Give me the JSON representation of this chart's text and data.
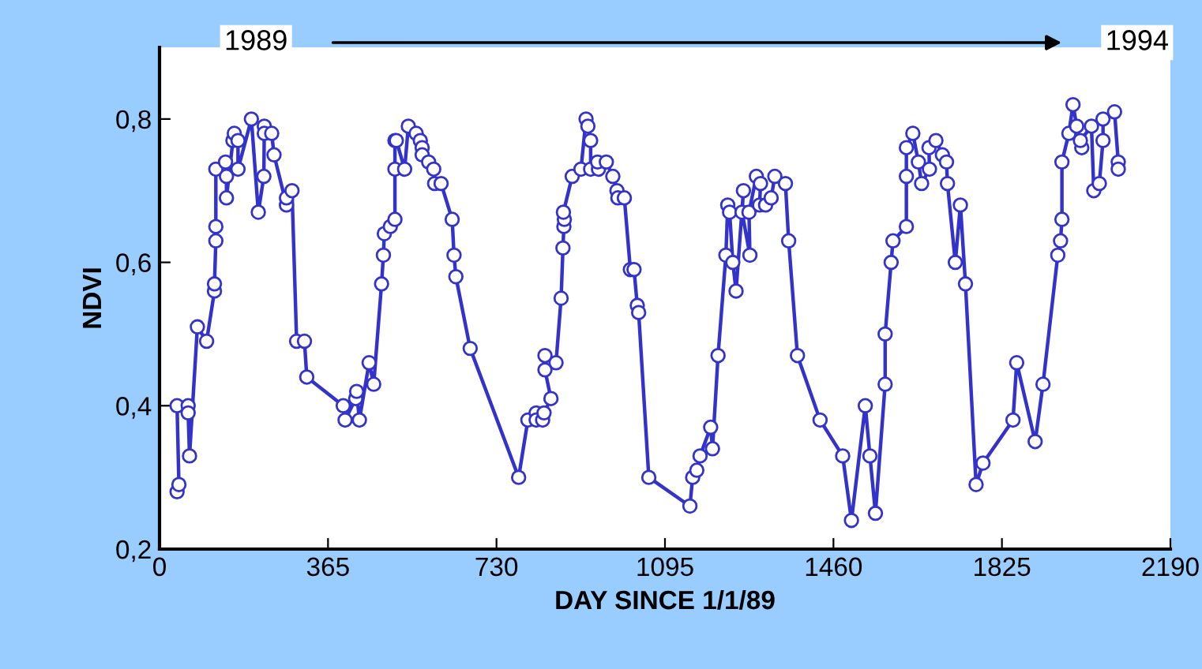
{
  "chart_data": {
    "type": "line",
    "xlabel": "DAY SINCE 1/1/89",
    "ylabel": "NDVI",
    "annotations": [
      "1989",
      "1994"
    ],
    "x": [
      38,
      42,
      38,
      62,
      62,
      65,
      82,
      102,
      119,
      119,
      122,
      122,
      122,
      143,
      145,
      145,
      159,
      162,
      170,
      170,
      199,
      214,
      226,
      227,
      227,
      243,
      248,
      275,
      275,
      287,
      297,
      314,
      319,
      398,
      402,
      425,
      427,
      433,
      454,
      464,
      481,
      485,
      487,
      500,
      510,
      510,
      510,
      513,
      531,
      539,
      556,
      565,
      569,
      569,
      583,
      594,
      596,
      610,
      634,
      638,
      642,
      673,
      778,
      798,
      816,
      816,
      830,
      833,
      848,
      835,
      835,
      859,
      870,
      874,
      876,
      877,
      875,
      894,
      913,
      924,
      928,
      934,
      934,
      951,
      949,
      968,
      982,
      991,
      993,
      1007,
      1020,
      1028,
      1035,
      1038,
      1060,
      1149,
      1155,
      1164,
      1171,
      1194,
      1198,
      1210,
      1227,
      1231,
      1235,
      1242,
      1249,
      1265,
      1262,
      1279,
      1277,
      1293,
      1302,
      1300,
      1313,
      1325,
      1333,
      1356,
      1363,
      1382,
      1431,
      1480,
      1499,
      1529,
      1539,
      1551,
      1572,
      1572,
      1585,
      1589,
      1618,
      1618,
      1618,
      1632,
      1644,
      1651,
      1668,
      1667,
      1682,
      1696,
      1705,
      1707,
      1724,
      1735,
      1746,
      1769,
      1784,
      1849,
      1857,
      1897,
      1914,
      1946,
      1952,
      1955,
      1955,
      1970,
      1979,
      1987,
      1998,
      1995,
      2019,
      2024,
      2036,
      2044,
      2044,
      2069,
      2077,
      2077
    ],
    "series": [
      {
        "color": "#3333cc",
        "values": [
          0.28,
          0.29,
          0.4,
          0.4,
          0.39,
          0.33,
          0.51,
          0.49,
          0.56,
          0.57,
          0.63,
          0.65,
          0.73,
          0.74,
          0.72,
          0.69,
          0.77,
          0.78,
          0.77,
          0.73,
          0.8,
          0.67,
          0.72,
          0.79,
          0.78,
          0.78,
          0.75,
          0.68,
          0.69,
          0.7,
          0.49,
          0.49,
          0.44,
          0.4,
          0.38,
          0.41,
          0.42,
          0.38,
          0.46,
          0.43,
          0.57,
          0.61,
          0.64,
          0.65,
          0.66,
          0.73,
          0.77,
          0.77,
          0.73,
          0.79,
          0.78,
          0.77,
          0.76,
          0.75,
          0.74,
          0.73,
          0.71,
          0.71,
          0.66,
          0.61,
          0.58,
          0.48,
          0.3,
          0.38,
          0.39,
          0.38,
          0.38,
          0.39,
          0.41,
          0.45,
          0.47,
          0.46,
          0.55,
          0.62,
          0.65,
          0.66,
          0.67,
          0.72,
          0.73,
          0.8,
          0.79,
          0.77,
          0.73,
          0.73,
          0.74,
          0.74,
          0.72,
          0.7,
          0.69,
          0.69,
          0.59,
          0.59,
          0.54,
          0.53,
          0.3,
          0.26,
          0.3,
          0.31,
          0.33,
          0.37,
          0.34,
          0.47,
          0.61,
          0.68,
          0.67,
          0.6,
          0.56,
          0.7,
          0.67,
          0.61,
          0.67,
          0.72,
          0.71,
          0.68,
          0.68,
          0.69,
          0.72,
          0.71,
          0.63,
          0.47,
          0.38,
          0.33,
          0.24,
          0.4,
          0.33,
          0.25,
          0.43,
          0.5,
          0.6,
          0.63,
          0.65,
          0.72,
          0.76,
          0.78,
          0.74,
          0.71,
          0.73,
          0.76,
          0.77,
          0.75,
          0.74,
          0.71,
          0.6,
          0.68,
          0.57,
          0.29,
          0.32,
          0.38,
          0.46,
          0.35,
          0.43,
          0.61,
          0.63,
          0.66,
          0.74,
          0.78,
          0.82,
          0.79,
          0.76,
          0.77,
          0.79,
          0.7,
          0.71,
          0.77,
          0.8,
          0.81,
          0.74,
          0.73
        ]
      }
    ],
    "xlim": [
      0,
      2190
    ],
    "xticks": [
      0,
      365,
      730,
      1095,
      1460,
      1825,
      2190
    ],
    "ylim": [
      0.2,
      0.9
    ],
    "yticks": [
      {
        "value": 0.2,
        "label": "0,2"
      },
      {
        "value": 0.4,
        "label": "0,4"
      },
      {
        "value": 0.6,
        "label": "0,6"
      },
      {
        "value": 0.8,
        "label": "0,8"
      }
    ],
    "marker": "circle",
    "line_style": "solid",
    "grid": false,
    "legend": false
  }
}
